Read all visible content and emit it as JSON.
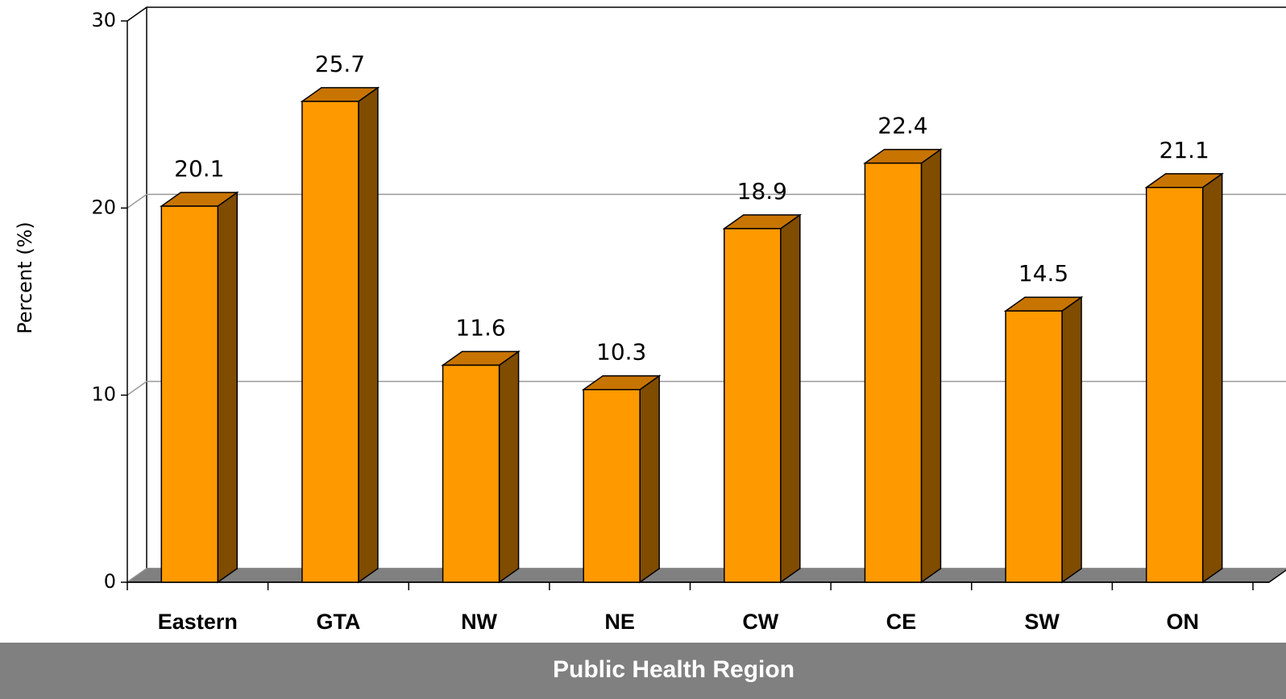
{
  "chart_data": {
    "type": "bar3d",
    "y_label": "Percent (%)",
    "x_label": "Public Health Region",
    "categories": [
      "Eastern",
      "GTA",
      "NW",
      "NE",
      "CW",
      "CE",
      "SW",
      "ON"
    ],
    "values": [
      20.1,
      25.7,
      11.6,
      10.3,
      18.9,
      22.4,
      14.5,
      21.1
    ],
    "color": "#ff9900",
    "ylim": [
      0,
      30
    ],
    "yticks": [
      0,
      10,
      20,
      30
    ],
    "grid": true
  }
}
